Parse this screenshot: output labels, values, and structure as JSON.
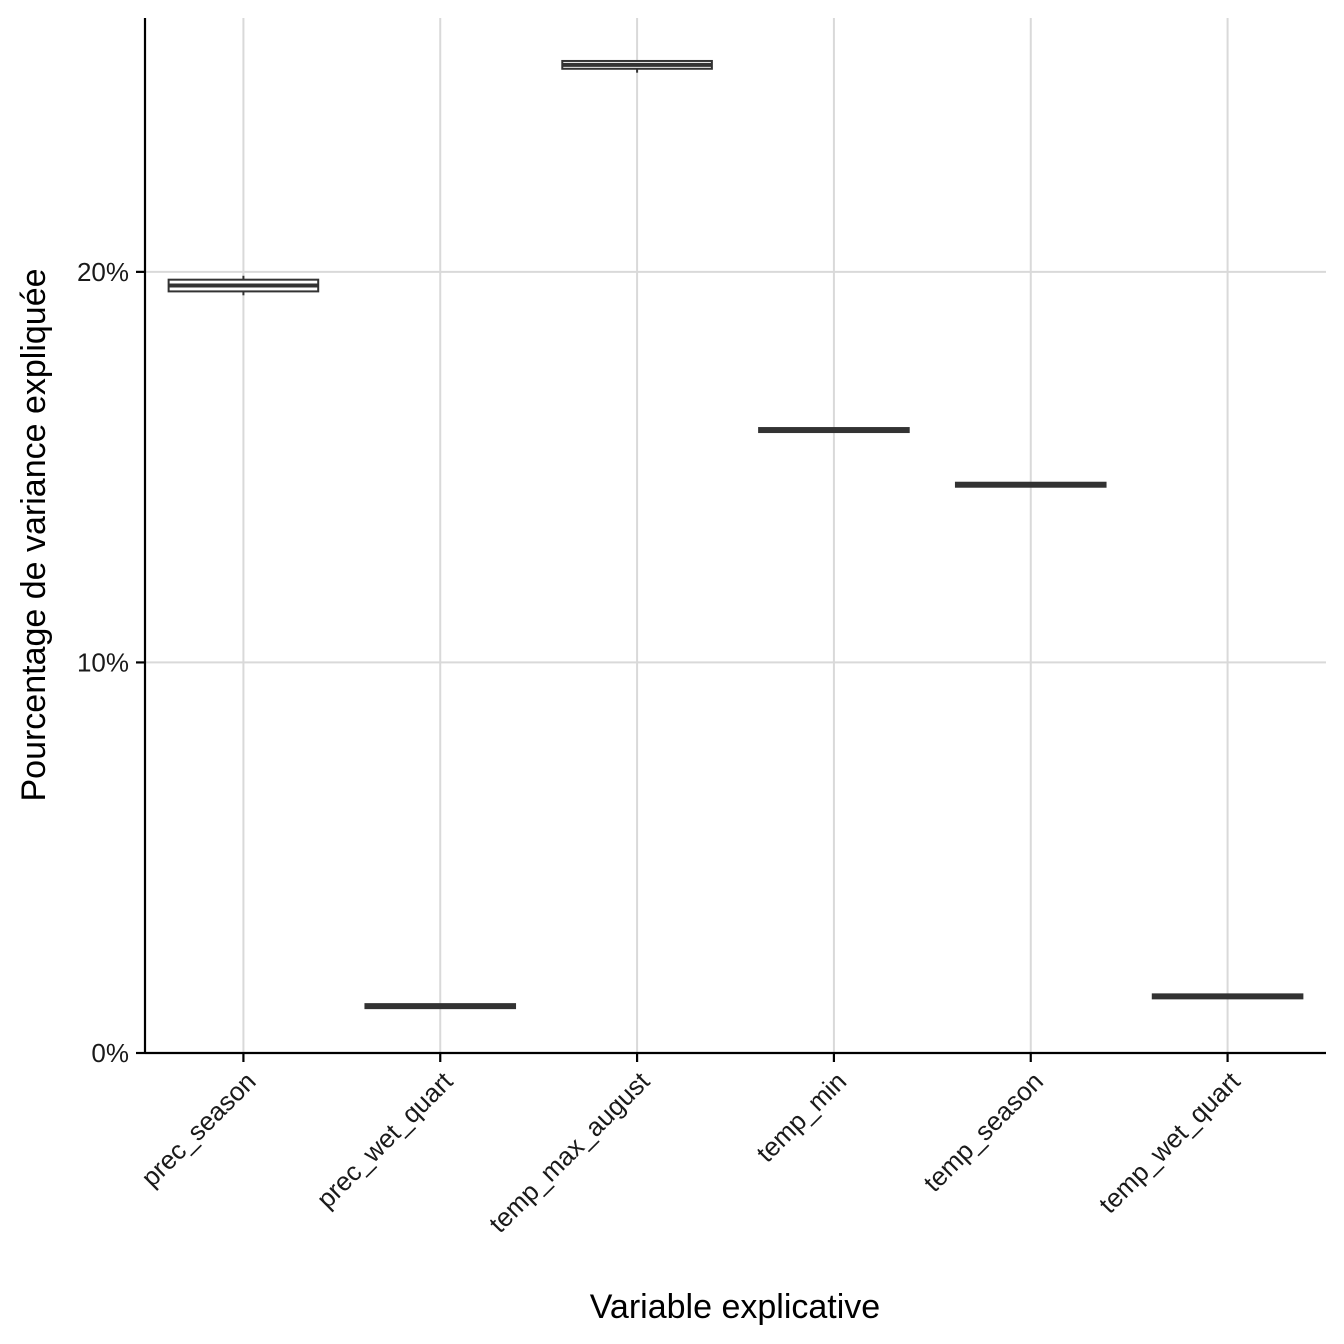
{
  "chart_data": {
    "type": "boxplot",
    "title": "",
    "xlabel": "Variable explicative",
    "ylabel": "Pourcentage de variance expliquée",
    "categories": [
      "prec_season",
      "prec_wet_quart",
      "temp_max_august",
      "temp_min",
      "temp_season",
      "temp_wet_quart"
    ],
    "boxes": [
      {
        "category": "prec_season",
        "min": 19.4,
        "q1": 19.5,
        "median": 19.65,
        "q3": 19.8,
        "max": 19.9
      },
      {
        "category": "prec_wet_quart",
        "min": 1.2,
        "q1": 1.2,
        "median": 1.2,
        "q3": 1.2,
        "max": 1.2
      },
      {
        "category": "temp_max_august",
        "min": 25.1,
        "q1": 25.2,
        "median": 25.3,
        "q3": 25.4,
        "max": 25.4
      },
      {
        "category": "temp_min",
        "min": 15.95,
        "q1": 15.95,
        "median": 15.95,
        "q3": 15.95,
        "max": 15.95
      },
      {
        "category": "temp_season",
        "min": 14.55,
        "q1": 14.55,
        "median": 14.55,
        "q3": 14.55,
        "max": 14.55
      },
      {
        "category": "temp_wet_quart",
        "min": 1.45,
        "q1": 1.45,
        "median": 1.45,
        "q3": 1.45,
        "max": 1.45
      }
    ],
    "ylim": [
      0,
      26.5
    ],
    "yticks": [
      0,
      10,
      20
    ],
    "ytick_labels": [
      "0%",
      "10%",
      "20%"
    ],
    "grid": true,
    "colors": {
      "box_stroke": "#333333",
      "grid": "#d9d9d9",
      "axis": "#000000"
    }
  }
}
